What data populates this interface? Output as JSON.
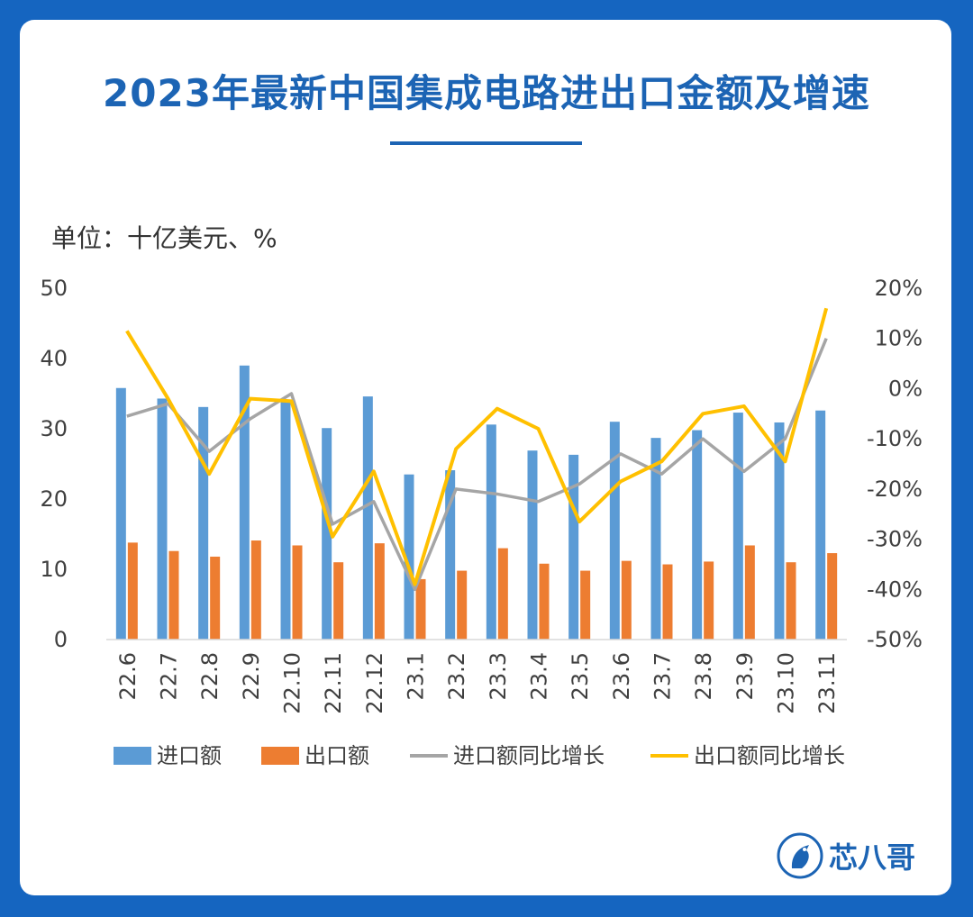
{
  "title": "2023年最新中国集成电路进出口金额及增速",
  "unit_label": "单位：十亿美元、%",
  "brand": {
    "name": "芯八哥",
    "logo_icon": "bird-logo-icon",
    "color": "#1c64b4"
  },
  "chart_data": {
    "type": "bar",
    "categories": [
      "22.6",
      "22.7",
      "22.8",
      "22.9",
      "22.10",
      "22.11",
      "22.12",
      "23.1",
      "23.2",
      "23.3",
      "23.4",
      "23.5",
      "23.6",
      "23.7",
      "23.8",
      "23.9",
      "23.10",
      "23.11"
    ],
    "y_left": {
      "ticks": [
        "0",
        "10",
        "20",
        "30",
        "40",
        "50"
      ],
      "ylim": [
        0,
        50
      ]
    },
    "y_right": {
      "ticks": [
        "-50%",
        "-40%",
        "-30%",
        "-20%",
        "-10%",
        "0%",
        "10%",
        "20%"
      ],
      "ylim": [
        -50,
        20
      ]
    },
    "series": [
      {
        "name": "进口额",
        "type": "bar",
        "axis": "left",
        "color": "#5b9bd5",
        "values": [
          35.8,
          34.3,
          33.1,
          39.0,
          33.9,
          30.1,
          34.6,
          23.5,
          24.1,
          30.6,
          26.9,
          26.3,
          31.0,
          28.7,
          29.8,
          32.3,
          30.9,
          32.6
        ]
      },
      {
        "name": "出口额",
        "type": "bar",
        "axis": "left",
        "color": "#ed7d31",
        "values": [
          13.8,
          12.6,
          11.8,
          14.1,
          13.4,
          11.0,
          13.7,
          8.6,
          9.8,
          13.0,
          10.8,
          9.8,
          11.2,
          10.7,
          11.1,
          13.4,
          11.0,
          12.3
        ]
      },
      {
        "name": "进口额同比增长",
        "type": "line",
        "axis": "right",
        "color": "#a5a5a5",
        "values": [
          -5.5,
          -3.0,
          -12.5,
          -6.0,
          -1.0,
          -27.0,
          -22.5,
          -40.0,
          -20.0,
          -21.0,
          -22.5,
          -19.0,
          -13.0,
          -17.0,
          -10.0,
          -16.5,
          -10.0,
          10.0
        ]
      },
      {
        "name": "出口额同比增长",
        "type": "line",
        "axis": "right",
        "color": "#ffc000",
        "values": [
          11.5,
          -2.0,
          -17.0,
          -2.0,
          -2.5,
          -29.5,
          -16.5,
          -39.0,
          -12.0,
          -4.0,
          -8.0,
          -26.5,
          -18.5,
          -14.5,
          -5.0,
          -3.5,
          -14.5,
          16.0
        ]
      }
    ],
    "legend_position": "bottom",
    "grid": false
  }
}
